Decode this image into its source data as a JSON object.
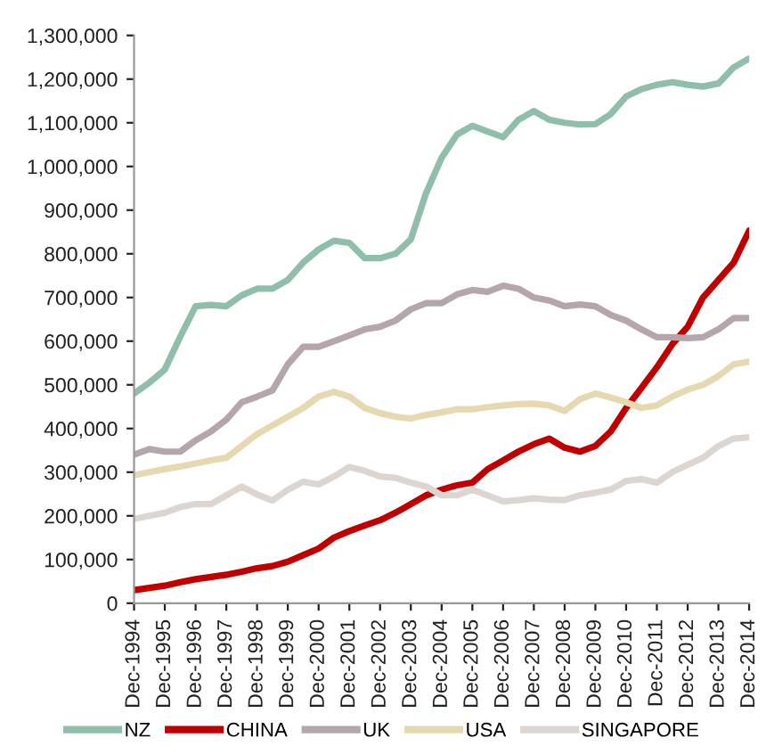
{
  "chart_data": {
    "type": "line",
    "x": [
      "1994-12",
      "1995-06",
      "1995-12",
      "1996-06",
      "1996-12",
      "1997-06",
      "1997-12",
      "1998-06",
      "1998-12",
      "1999-06",
      "1999-12",
      "2000-06",
      "2000-12",
      "2001-06",
      "2001-12",
      "2002-06",
      "2002-12",
      "2003-06",
      "2003-12",
      "2004-06",
      "2004-12",
      "2005-06",
      "2005-12",
      "2006-06",
      "2006-12",
      "2007-06",
      "2007-12",
      "2008-06",
      "2008-12",
      "2009-06",
      "2009-12",
      "2010-06",
      "2010-12",
      "2011-06",
      "2011-12",
      "2012-06",
      "2012-12",
      "2013-06",
      "2013-12",
      "2014-06",
      "2014-12"
    ],
    "series": [
      {
        "name": "NZ",
        "color": "#8fbfaa",
        "values": [
          480000,
          505000,
          535000,
          610000,
          680000,
          683000,
          680000,
          705000,
          720000,
          720000,
          740000,
          780000,
          810000,
          830000,
          825000,
          790000,
          790000,
          800000,
          833000,
          940000,
          1020000,
          1073000,
          1093000,
          1080000,
          1067000,
          1107000,
          1127000,
          1107000,
          1100000,
          1096000,
          1097000,
          1120000,
          1160000,
          1177000,
          1187000,
          1193000,
          1187000,
          1183000,
          1190000,
          1227000,
          1247000
        ]
      },
      {
        "name": "CHINA",
        "color": "#c00000",
        "values": [
          30000,
          35000,
          40000,
          48000,
          55000,
          60000,
          65000,
          72000,
          80000,
          85000,
          95000,
          110000,
          125000,
          150000,
          165000,
          178000,
          190000,
          207000,
          227000,
          247000,
          260000,
          270000,
          276000,
          307000,
          327000,
          347000,
          364000,
          377000,
          356000,
          347000,
          360000,
          393000,
          447000,
          493000,
          540000,
          593000,
          633000,
          700000,
          740000,
          780000,
          853000
        ]
      },
      {
        "name": "UK",
        "color": "#b5a5ad",
        "values": [
          340000,
          353000,
          347000,
          347000,
          373000,
          393000,
          420000,
          460000,
          473000,
          487000,
          547000,
          587000,
          587000,
          600000,
          613000,
          627000,
          633000,
          647000,
          673000,
          687000,
          687000,
          707000,
          717000,
          713000,
          727000,
          720000,
          700000,
          693000,
          680000,
          684000,
          680000,
          660000,
          647000,
          627000,
          609000,
          609000,
          607000,
          609000,
          627000,
          653000,
          653000
        ]
      },
      {
        "name": "USA",
        "color": "#e6d8b0",
        "values": [
          293000,
          300000,
          307000,
          313000,
          320000,
          327000,
          333000,
          360000,
          387000,
          407000,
          427000,
          447000,
          473000,
          484000,
          473000,
          447000,
          435000,
          427000,
          423000,
          431000,
          437000,
          444000,
          444000,
          449000,
          453000,
          456000,
          457000,
          453000,
          440000,
          467000,
          480000,
          471000,
          460000,
          447000,
          453000,
          473000,
          489000,
          500000,
          520000,
          547000,
          553000
        ]
      },
      {
        "name": "SINGAPORE",
        "color": "#ddd5d0",
        "values": [
          193000,
          200000,
          207000,
          220000,
          227000,
          227000,
          247000,
          267000,
          249000,
          235000,
          260000,
          278000,
          272000,
          290000,
          312000,
          303000,
          290000,
          287000,
          276000,
          267000,
          247000,
          247000,
          260000,
          247000,
          233000,
          236000,
          240000,
          237000,
          236000,
          247000,
          253000,
          260000,
          280000,
          284000,
          276000,
          300000,
          317000,
          333000,
          360000,
          377000,
          380000
        ]
      }
    ],
    "xlim": [
      "1994-12",
      "2014-12"
    ],
    "xticks": [
      {
        "value": "1994-12",
        "label": "Dec-1994"
      },
      {
        "value": "1995-12",
        "label": "Dec-1995"
      },
      {
        "value": "1996-12",
        "label": "Dec-1996"
      },
      {
        "value": "1997-12",
        "label": "Dec-1997"
      },
      {
        "value": "1998-12",
        "label": "Dec-1998"
      },
      {
        "value": "1999-12",
        "label": "Dec-1999"
      },
      {
        "value": "2000-12",
        "label": "Dec-2000"
      },
      {
        "value": "2001-12",
        "label": "Dec-2001"
      },
      {
        "value": "2002-12",
        "label": "Dec-2002"
      },
      {
        "value": "2003-12",
        "label": "Dec-2003"
      },
      {
        "value": "2004-12",
        "label": "Dec-2004"
      },
      {
        "value": "2005-12",
        "label": "Dec-2005"
      },
      {
        "value": "2006-12",
        "label": "Dec-2006"
      },
      {
        "value": "2007-12",
        "label": "Dec-2007"
      },
      {
        "value": "2008-12",
        "label": "Dec-2008"
      },
      {
        "value": "2009-12",
        "label": "Dec-2009"
      },
      {
        "value": "2010-12",
        "label": "Dec-2010"
      },
      {
        "value": "2011-12",
        "label": "Dec-2011"
      },
      {
        "value": "2012-12",
        "label": "Dec-2012"
      },
      {
        "value": "2013-12",
        "label": "Dec-2013"
      },
      {
        "value": "2014-12",
        "label": "Dec-2014"
      }
    ],
    "ylim": [
      0,
      1300000
    ],
    "yticks": [
      0,
      {
        "value": 100000,
        "label": "100,000"
      },
      {
        "value": 200000,
        "label": "200,000"
      },
      {
        "value": 300000,
        "label": "300,000"
      },
      {
        "value": 400000,
        "label": "400,000"
      },
      {
        "value": 500000,
        "label": "500,000"
      },
      {
        "value": 600000,
        "label": "600,000"
      },
      {
        "value": 700000,
        "label": "700,000"
      },
      {
        "value": 800000,
        "label": "800,000"
      },
      {
        "value": 900000,
        "label": "900,000"
      },
      {
        "value": 1000000,
        "label": "1,000,000"
      },
      {
        "value": 1100000,
        "label": "1,100,000"
      },
      {
        "value": 1200000,
        "label": "1,200,000"
      },
      {
        "value": 1300000,
        "label": "1,300,000"
      }
    ],
    "grid": false,
    "legend": "bottom",
    "marker": "none",
    "line_style": "solid"
  }
}
